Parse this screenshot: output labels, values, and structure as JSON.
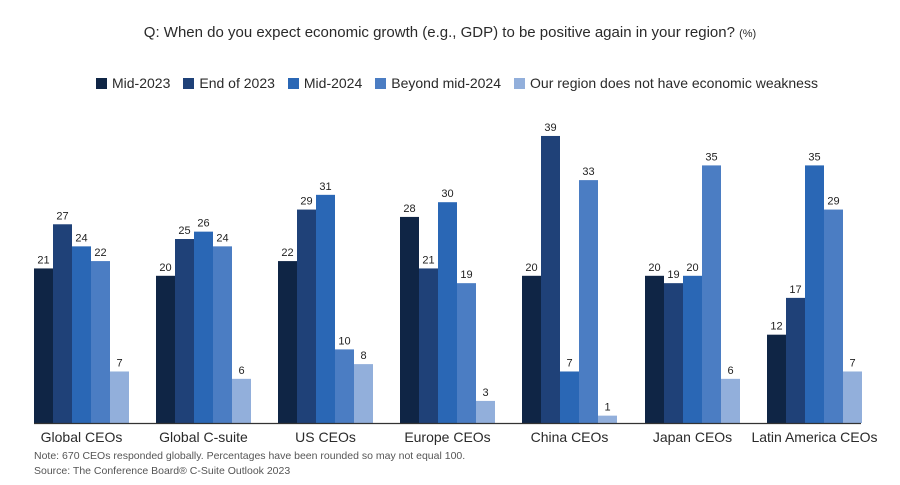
{
  "chart_data": {
    "type": "bar",
    "title": "Q: When do you expect economic growth (e.g., GDP) to be positive again in your region?",
    "title_unit": "(%)",
    "xlabel": "",
    "ylabel": "",
    "ylim": [
      0,
      39
    ],
    "grid": false,
    "legend_position": "top",
    "categories": [
      "Global CEOs",
      "Global C-suite",
      "US CEOs",
      "Europe CEOs",
      "China CEOs",
      "Japan CEOs",
      "Latin America CEOs"
    ],
    "series": [
      {
        "name": "Mid-2023",
        "color": "#0f2545",
        "values": [
          21,
          20,
          22,
          28,
          20,
          20,
          12
        ]
      },
      {
        "name": "End of 2023",
        "color": "#1f4178",
        "values": [
          27,
          25,
          29,
          21,
          39,
          19,
          17
        ]
      },
      {
        "name": "Mid-2024",
        "color": "#2a67b5",
        "values": [
          24,
          26,
          31,
          30,
          7,
          20,
          35
        ]
      },
      {
        "name": "Beyond mid-2024",
        "color": "#4b7dc3",
        "values": [
          22,
          24,
          10,
          19,
          33,
          35,
          29
        ]
      },
      {
        "name": "Our region does not have economic weakness",
        "color": "#92afdb",
        "values": [
          7,
          6,
          8,
          3,
          1,
          6,
          7
        ]
      }
    ],
    "notes": [
      "Note: 670 CEOs responded globally. Percentages have been rounded so may not equal 100.",
      "Source: The Conference Board® C-Suite Outlook 2023"
    ]
  }
}
